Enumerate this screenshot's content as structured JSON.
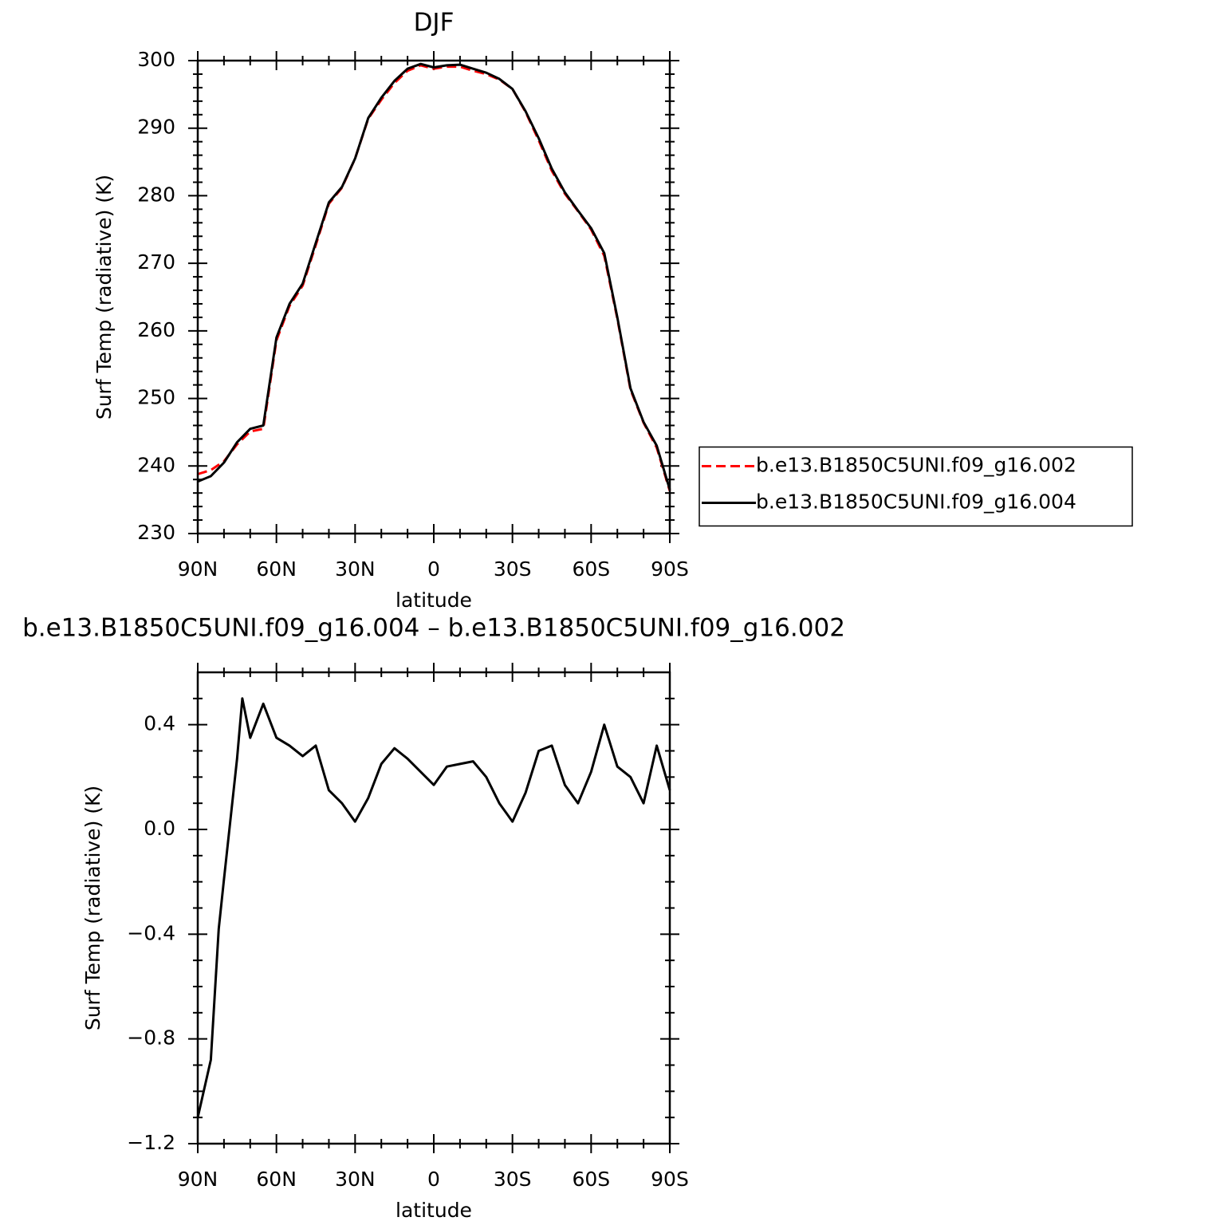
{
  "chart_data": [
    {
      "type": "line",
      "title": "DJF",
      "xlabel": "latitude",
      "ylabel": "Surf Temp (radiative) (K)",
      "x": [
        90,
        85,
        80,
        75,
        70,
        65,
        60,
        55,
        50,
        45,
        40,
        35,
        30,
        25,
        20,
        15,
        10,
        5,
        0,
        -5,
        -10,
        -15,
        -20,
        -25,
        -30,
        -35,
        -40,
        -45,
        -50,
        -55,
        -60,
        -65,
        -70,
        -75,
        -80,
        -85,
        -90
      ],
      "series": [
        {
          "name": "b.e13.B1850C5UNI.f09_g16.002",
          "color": "#ff0000",
          "dashed": true,
          "values": [
            238.8,
            239.4,
            240.7,
            243.2,
            245.1,
            245.5,
            258.6,
            263.7,
            266.7,
            272.7,
            278.8,
            281.2,
            285.5,
            291.4,
            294.2,
            296.7,
            298.5,
            299.3,
            298.8,
            299.1,
            299.1,
            298.5,
            298.0,
            297.2,
            295.8,
            292.4,
            288.2,
            283.7,
            280.3,
            277.7,
            275.0,
            271.1,
            261.8,
            251.3,
            246.4,
            242.7,
            236.3
          ]
        },
        {
          "name": "b.e13.B1850C5UNI.f09_g16.004",
          "color": "#000000",
          "dashed": false,
          "values": [
            237.7,
            238.5,
            240.5,
            243.5,
            245.5,
            246.0,
            259.0,
            264.0,
            267.0,
            273.0,
            279.0,
            281.3,
            285.5,
            291.5,
            294.5,
            297.0,
            298.8,
            299.5,
            299.0,
            299.3,
            299.4,
            298.8,
            298.2,
            297.3,
            295.8,
            292.5,
            288.5,
            284.0,
            280.5,
            277.8,
            275.2,
            271.5,
            262.0,
            251.5,
            246.5,
            243.0,
            236.5
          ]
        }
      ],
      "xlim": [
        90,
        -90
      ],
      "xticks": [
        {
          "value": 90,
          "label": "90N"
        },
        {
          "value": 60,
          "label": "60N"
        },
        {
          "value": 30,
          "label": "30N"
        },
        0,
        {
          "value": -30,
          "label": "30S"
        },
        {
          "value": -60,
          "label": "60S"
        },
        {
          "value": -90,
          "label": "90S"
        }
      ],
      "ylim": [
        230,
        300
      ],
      "yticks": [
        230,
        240,
        250,
        260,
        270,
        280,
        290,
        300
      ],
      "legend": "right"
    },
    {
      "type": "line",
      "title": "b.e13.B1850C5UNI.f09_g16.004 – b.e13.B1850C5UNI.f09_g16.002",
      "xlabel": "latitude",
      "ylabel": "Surf Temp (radiative) (K)",
      "x": [
        90,
        85,
        82,
        80,
        75,
        73,
        70,
        65,
        60,
        55,
        50,
        45,
        40,
        35,
        30,
        25,
        20,
        15,
        10,
        5,
        0,
        -5,
        -10,
        -15,
        -20,
        -25,
        -30,
        -35,
        -40,
        -45,
        -50,
        -55,
        -60,
        -65,
        -70,
        -75,
        -80,
        -85,
        -90
      ],
      "series": [
        {
          "color": "#000000",
          "dashed": false,
          "values": [
            -1.1,
            -0.88,
            -0.38,
            -0.19,
            0.27,
            0.5,
            0.35,
            0.48,
            0.35,
            0.32,
            0.28,
            0.32,
            0.15,
            0.1,
            0.03,
            0.12,
            0.25,
            0.31,
            0.27,
            0.22,
            0.17,
            0.24,
            0.25,
            0.26,
            0.2,
            0.1,
            0.03,
            0.14,
            0.3,
            0.32,
            0.17,
            0.1,
            0.22,
            0.4,
            0.24,
            0.2,
            0.1,
            0.32,
            0.15
          ]
        }
      ],
      "xlim": [
        90,
        -90
      ],
      "xticks": [
        {
          "value": 90,
          "label": "90N"
        },
        {
          "value": 60,
          "label": "60N"
        },
        {
          "value": 30,
          "label": "30N"
        },
        0,
        {
          "value": -30,
          "label": "30S"
        },
        {
          "value": -60,
          "label": "60S"
        },
        {
          "value": -90,
          "label": "90S"
        }
      ],
      "ylim": [
        -1.2,
        0.6
      ],
      "yticks": [
        {
          "value": -1.2,
          "label": "−1.2"
        },
        {
          "value": -0.8,
          "label": "−0.8"
        },
        {
          "value": -0.4,
          "label": "−0.4"
        },
        {
          "value": 0,
          "label": "0.0"
        },
        0.4
      ]
    }
  ]
}
